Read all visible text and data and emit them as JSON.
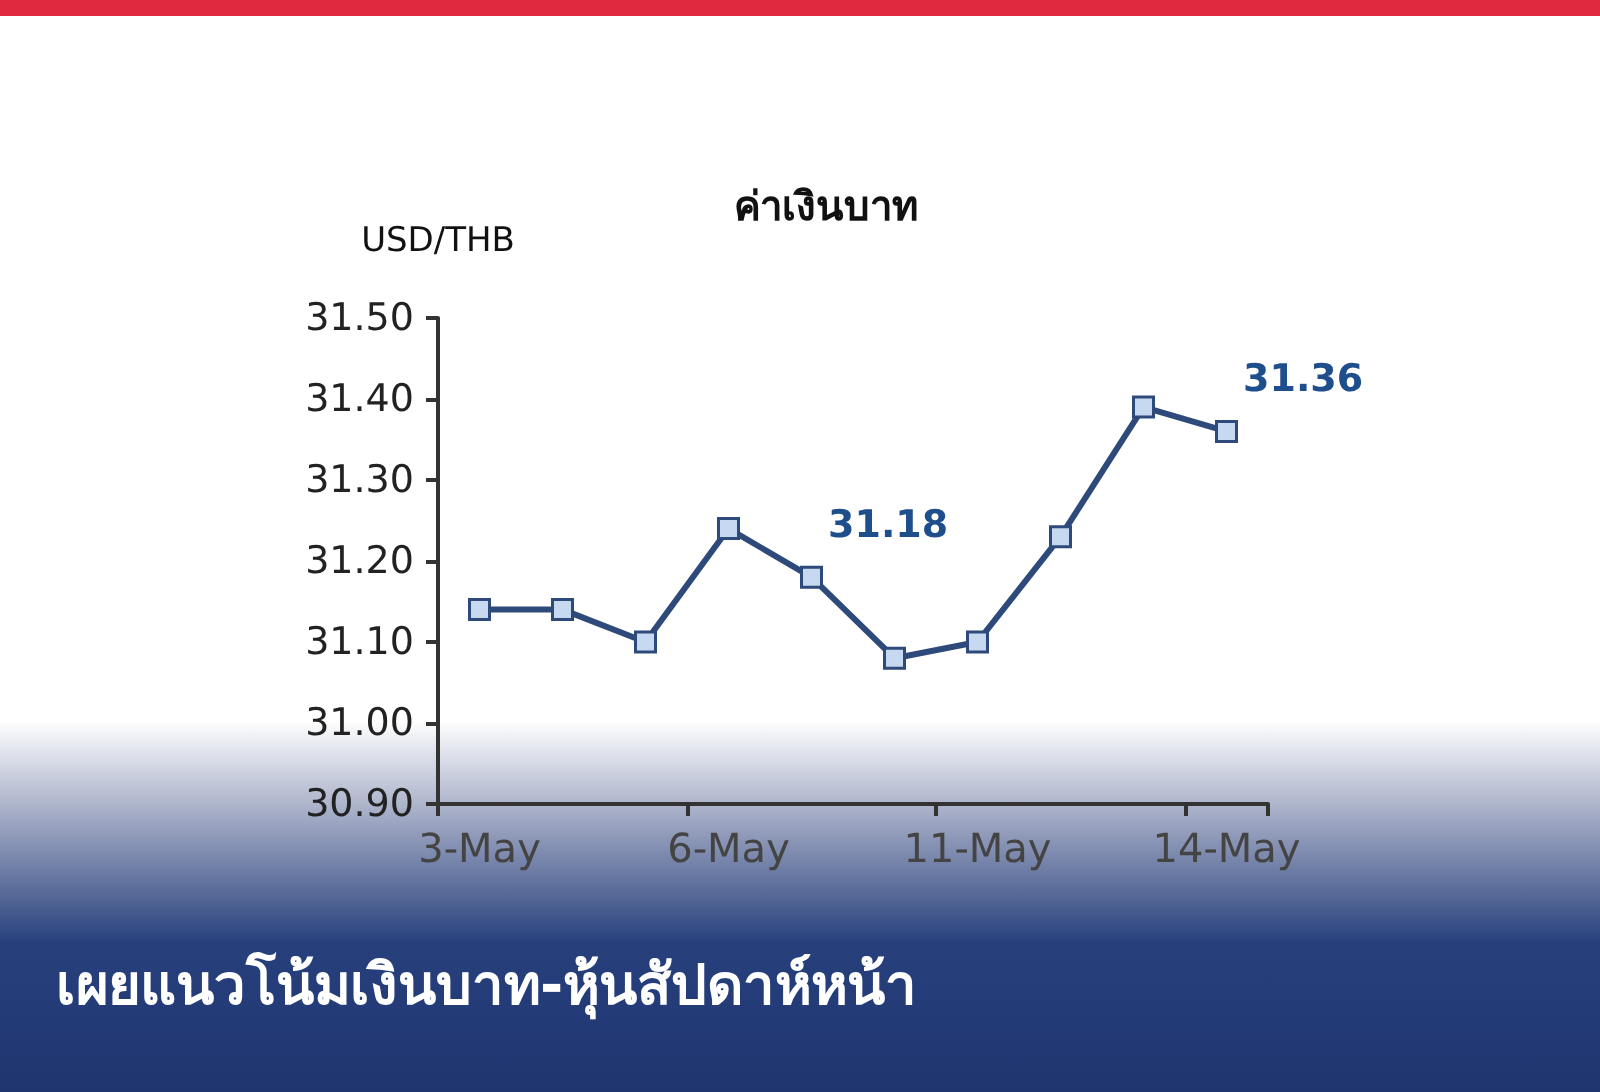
{
  "chart_data": {
    "type": "line",
    "title": "ค่าเงินบาท",
    "ylabel": "USD/THB",
    "categories": [
      "3-May",
      null,
      null,
      "6-May",
      null,
      null,
      "11-May",
      null,
      null,
      "14-May"
    ],
    "series": [
      {
        "color": "#2e4a7a",
        "values": [
          31.14,
          31.14,
          31.1,
          31.24,
          31.18,
          31.08,
          31.1,
          31.23,
          31.39,
          31.36
        ],
        "value_labels": [
          null,
          null,
          null,
          null,
          "31.18",
          null,
          null,
          null,
          null,
          "31.36"
        ]
      }
    ],
    "ylim": [
      30.9,
      31.5
    ],
    "yticks": [
      {
        "value": 30.9,
        "label": "30.90"
      },
      {
        "value": 31.0,
        "label": "31.00"
      },
      {
        "value": 31.1,
        "label": "31.10"
      },
      {
        "value": 31.2,
        "label": "31.20"
      },
      {
        "value": 31.3,
        "label": "31.30"
      },
      {
        "value": 31.4,
        "label": "31.40"
      },
      {
        "value": 31.5,
        "label": "31.50"
      }
    ],
    "grid": false,
    "marker": "square",
    "line_style": "solid",
    "annotations": [
      "เผยแนวโน้มเงินบาท-หุ้นสัปดาห์หน้า"
    ]
  }
}
